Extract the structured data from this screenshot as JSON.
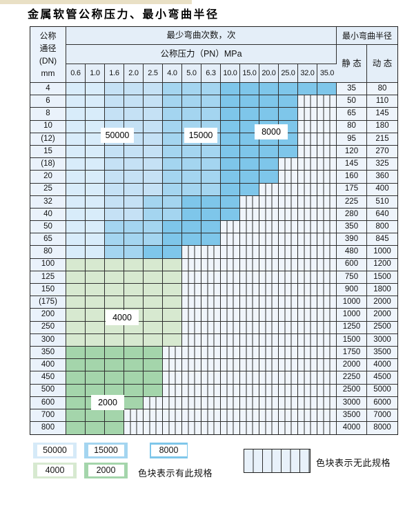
{
  "page": {
    "title": "金属软管公称压力、最小弯曲半径"
  },
  "colors": {
    "blue_light_1": "#d8ecfa",
    "blue_light_2": "#c5e1f5",
    "cycles_50000": "#d6eaf8",
    "cycles_15000": "#a4d5f0",
    "cycles_8000": "#7ec6ea",
    "cycles_4000": "#d7e9d0",
    "cycles_2000": "#a4d5ab",
    "header_fill": "#e4eef8",
    "hatch_fill": "#f0f5fb"
  },
  "table": {
    "header": {
      "dn_lines": [
        "公称",
        "通径",
        "(DN)",
        "mm"
      ],
      "cycles_title": "最少弯曲次数，次",
      "pressure_title": "公称压力（PN）MPa",
      "radius_title": "最小弯曲半径",
      "static_label": "静 态",
      "dynamic_label": "动 态"
    },
    "pressure_columns": [
      "0.6",
      "1.0",
      "1.6",
      "2.0",
      "2.5",
      "4.0",
      "5.0",
      "6.3",
      "10.0",
      "15.0",
      "20.0",
      "25.0",
      "32.0",
      "35.0"
    ],
    "rows": [
      {
        "dn": "4",
        "colored": 14,
        "band": "blue",
        "m_start": 6,
        "d_start": 9,
        "static": "35",
        "dynamic": "80"
      },
      {
        "dn": "6",
        "colored": 12,
        "band": "blue",
        "m_start": 6,
        "d_start": 9,
        "static": "50",
        "dynamic": "110"
      },
      {
        "dn": "8",
        "colored": 12,
        "band": "blue",
        "m_start": 6,
        "d_start": 9,
        "static": "65",
        "dynamic": "145"
      },
      {
        "dn": "10",
        "colored": 12,
        "band": "blue",
        "m_start": 6,
        "d_start": 9,
        "static": "80",
        "dynamic": "180"
      },
      {
        "dn": "(12)",
        "colored": 12,
        "band": "blue",
        "m_start": 6,
        "d_start": 9,
        "static": "95",
        "dynamic": "215"
      },
      {
        "dn": "15",
        "colored": 12,
        "band": "blue",
        "m_start": 6,
        "d_start": 9,
        "static": "120",
        "dynamic": "270"
      },
      {
        "dn": "(18)",
        "colored": 11,
        "band": "blue",
        "m_start": 6,
        "d_start": 9,
        "static": "145",
        "dynamic": "325"
      },
      {
        "dn": "20",
        "colored": 11,
        "band": "blue",
        "m_start": 6,
        "d_start": 9,
        "static": "160",
        "dynamic": "360"
      },
      {
        "dn": "25",
        "colored": 10,
        "band": "blue",
        "m_start": 6,
        "d_start": 9,
        "static": "175",
        "dynamic": "400"
      },
      {
        "dn": "32",
        "colored": 9,
        "band": "blue",
        "m_start": 5,
        "d_start": 7,
        "static": "225",
        "dynamic": "510"
      },
      {
        "dn": "40",
        "colored": 9,
        "band": "blue",
        "m_start": 5,
        "d_start": 7,
        "static": "280",
        "dynamic": "640"
      },
      {
        "dn": "50",
        "colored": 8,
        "band": "blue",
        "m_start": 3,
        "d_start": 6,
        "static": "350",
        "dynamic": "800"
      },
      {
        "dn": "65",
        "colored": 8,
        "band": "blue",
        "m_start": 3,
        "d_start": 6,
        "static": "390",
        "dynamic": "845"
      },
      {
        "dn": "80",
        "colored": 6,
        "band": "blue",
        "m_start": 3,
        "d_start": 5,
        "static": "480",
        "dynamic": "1000"
      },
      {
        "dn": "100",
        "colored": 6,
        "band": "green4000",
        "static": "600",
        "dynamic": "1200"
      },
      {
        "dn": "125",
        "colored": 6,
        "band": "green4000",
        "static": "750",
        "dynamic": "1500"
      },
      {
        "dn": "150",
        "colored": 6,
        "band": "green4000",
        "static": "900",
        "dynamic": "1800"
      },
      {
        "dn": "(175)",
        "colored": 6,
        "band": "green4000",
        "static": "1000",
        "dynamic": "2000"
      },
      {
        "dn": "200",
        "colored": 6,
        "band": "green4000",
        "static": "1000",
        "dynamic": "2000"
      },
      {
        "dn": "250",
        "colored": 6,
        "band": "green4000",
        "static": "1250",
        "dynamic": "2500"
      },
      {
        "dn": "300",
        "colored": 6,
        "band": "green4000",
        "static": "1500",
        "dynamic": "3000"
      },
      {
        "dn": "350",
        "colored": 5,
        "band": "green2000",
        "static": "1750",
        "dynamic": "3500"
      },
      {
        "dn": "400",
        "colored": 5,
        "band": "green2000",
        "static": "2000",
        "dynamic": "4000"
      },
      {
        "dn": "450",
        "colored": 5,
        "band": "green2000",
        "static": "2250",
        "dynamic": "4500"
      },
      {
        "dn": "500",
        "colored": 5,
        "band": "green2000",
        "static": "2500",
        "dynamic": "5000"
      },
      {
        "dn": "600",
        "colored": 4,
        "band": "green2000",
        "static": "3000",
        "dynamic": "6000"
      },
      {
        "dn": "700",
        "colored": 3,
        "band": "green2000",
        "static": "3500",
        "dynamic": "7000"
      },
      {
        "dn": "800",
        "colored": 3,
        "band": "green2000",
        "static": "4000",
        "dynamic": "8000"
      }
    ]
  },
  "overlays": {
    "cycles_50000": "50000",
    "cycles_15000": "15000",
    "cycles_8000": "8000",
    "cycles_4000": "4000",
    "cycles_2000": "2000"
  },
  "legend": {
    "swatches": [
      {
        "id": "sw-50000",
        "label": "50000",
        "color": "#d6eaf8"
      },
      {
        "id": "sw-15000",
        "label": "15000",
        "color": "#a4d5f0"
      },
      {
        "id": "sw-8000",
        "label": "8000",
        "color": "#7ec6ea"
      },
      {
        "id": "sw-4000",
        "label": "4000",
        "color": "#d7e9d0"
      },
      {
        "id": "sw-2000",
        "label": "2000",
        "color": "#a4d5ab"
      }
    ],
    "available_label": "色块表示有此规格",
    "unavailable_label": "色块表示无此规格"
  }
}
